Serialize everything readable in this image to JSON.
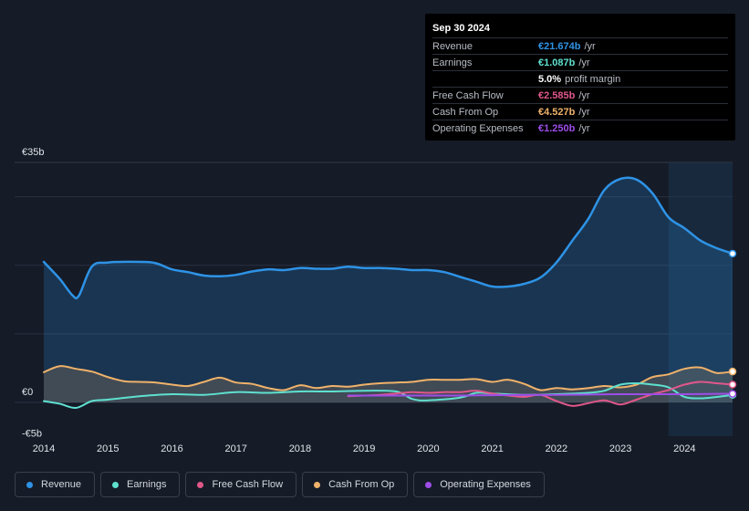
{
  "tooltip": {
    "date": "Sep 30 2024",
    "rows": [
      {
        "label": "Revenue",
        "value": "€21.674b",
        "unit": "/yr",
        "color": "#2e93e6"
      },
      {
        "label": "Earnings",
        "value": "€1.087b",
        "unit": "/yr",
        "color": "#5fe0cf"
      },
      {
        "label": "",
        "value": "5.0%",
        "unit": "profit margin",
        "color": "#ffffff"
      },
      {
        "label": "Free Cash Flow",
        "value": "€2.585b",
        "unit": "/yr",
        "color": "#e0578a"
      },
      {
        "label": "Cash From Op",
        "value": "€4.527b",
        "unit": "/yr",
        "color": "#f0b26a"
      },
      {
        "label": "Operating Expenses",
        "value": "€1.250b",
        "unit": "/yr",
        "color": "#9e4de8"
      }
    ]
  },
  "legend": [
    {
      "label": "Revenue",
      "color": "#2e93e6"
    },
    {
      "label": "Earnings",
      "color": "#5fe0cf"
    },
    {
      "label": "Free Cash Flow",
      "color": "#e0578a"
    },
    {
      "label": "Cash From Op",
      "color": "#f0b26a"
    },
    {
      "label": "Operating Expenses",
      "color": "#9e4de8"
    }
  ],
  "chart_data": {
    "type": "line",
    "y_tick_labels": [
      "€35b",
      "€0",
      "-€5b"
    ],
    "ylim": [
      -5,
      35
    ],
    "xlim": [
      2014,
      2024.75
    ],
    "x_tick_labels": [
      "2014",
      "2015",
      "2016",
      "2017",
      "2018",
      "2019",
      "2020",
      "2021",
      "2022",
      "2023",
      "2024"
    ],
    "x_ticks": [
      2014,
      2015,
      2016,
      2017,
      2018,
      2019,
      2020,
      2021,
      2022,
      2023,
      2024
    ],
    "highlight_start": 2023.75,
    "grid": true,
    "series": [
      {
        "name": "Revenue",
        "color": "#2e93e6",
        "fill": true,
        "x": [
          2014,
          2014.25,
          2014.45,
          2014.55,
          2014.75,
          2015,
          2015.5,
          2015.75,
          2016,
          2016.25,
          2016.5,
          2016.75,
          2017,
          2017.25,
          2017.5,
          2017.75,
          2018,
          2018.25,
          2018.5,
          2018.75,
          2019,
          2019.25,
          2019.5,
          2019.75,
          2020,
          2020.25,
          2020.5,
          2020.75,
          2021,
          2021.25,
          2021.5,
          2021.75,
          2022,
          2022.25,
          2022.5,
          2022.75,
          2023,
          2023.25,
          2023.5,
          2023.75,
          2024,
          2024.25,
          2024.5,
          2024.75
        ],
        "y": [
          20.5,
          18,
          15.6,
          15.6,
          19.8,
          20.4,
          20.5,
          20.3,
          19.4,
          19,
          18.5,
          18.4,
          18.6,
          19.1,
          19.4,
          19.3,
          19.6,
          19.5,
          19.5,
          19.8,
          19.6,
          19.6,
          19.5,
          19.3,
          19.3,
          19,
          18.3,
          17.6,
          16.9,
          16.9,
          17.3,
          18.2,
          20.4,
          23.6,
          26.8,
          31,
          32.6,
          32.5,
          30.5,
          27,
          25.4,
          23.6,
          22.5,
          21.7
        ]
      },
      {
        "name": "Earnings",
        "color": "#5fe0cf",
        "fill": false,
        "x": [
          2014,
          2014.25,
          2014.5,
          2014.75,
          2015,
          2015.5,
          2016,
          2016.5,
          2017,
          2017.5,
          2018,
          2018.5,
          2019,
          2019.5,
          2019.75,
          2020,
          2020.5,
          2020.75,
          2021,
          2021.5,
          2022,
          2022.5,
          2022.75,
          2023,
          2023.25,
          2023.5,
          2023.75,
          2024,
          2024.25,
          2024.5,
          2024.75
        ],
        "y": [
          0.2,
          -0.2,
          -0.8,
          0.2,
          0.4,
          0.9,
          1.2,
          1.1,
          1.5,
          1.4,
          1.6,
          1.6,
          1.7,
          1.6,
          0.5,
          0.3,
          0.7,
          1.4,
          1.3,
          1.1,
          1.2,
          1.4,
          1.7,
          2.6,
          2.8,
          2.6,
          2.2,
          0.8,
          0.6,
          0.8,
          1.1
        ]
      },
      {
        "name": "Free Cash Flow",
        "color": "#e0578a",
        "fill": false,
        "x": [
          2018.75,
          2019,
          2019.25,
          2019.5,
          2019.75,
          2020,
          2020.25,
          2020.5,
          2020.75,
          2021,
          2021.25,
          2021.5,
          2021.75,
          2022,
          2022.25,
          2022.5,
          2022.75,
          2023,
          2023.25,
          2023.5,
          2023.75,
          2024,
          2024.25,
          2024.5,
          2024.75
        ],
        "y": [
          0.9,
          1.0,
          1.1,
          1.3,
          1.5,
          1.4,
          1.5,
          1.5,
          1.7,
          1.3,
          1.0,
          0.8,
          1.1,
          0.2,
          -0.5,
          -0.1,
          0.3,
          -0.3,
          0.4,
          1.2,
          1.8,
          2.6,
          3.0,
          2.8,
          2.6
        ]
      },
      {
        "name": "Cash From Op",
        "color": "#f0b26a",
        "fill": true,
        "x": [
          2014,
          2014.25,
          2014.5,
          2014.75,
          2015,
          2015.25,
          2015.5,
          2015.75,
          2016,
          2016.25,
          2016.5,
          2016.75,
          2017,
          2017.25,
          2017.5,
          2017.75,
          2018,
          2018.25,
          2018.5,
          2018.75,
          2019,
          2019.25,
          2019.5,
          2019.75,
          2020,
          2020.25,
          2020.5,
          2020.75,
          2021,
          2021.25,
          2021.5,
          2021.75,
          2022,
          2022.25,
          2022.5,
          2022.75,
          2023,
          2023.25,
          2023.5,
          2023.75,
          2024,
          2024.25,
          2024.5,
          2024.75
        ],
        "y": [
          4.4,
          5.3,
          4.9,
          4.5,
          3.7,
          3.1,
          3.0,
          2.9,
          2.6,
          2.4,
          3.0,
          3.6,
          2.9,
          2.7,
          2.1,
          1.8,
          2.5,
          2.1,
          2.4,
          2.3,
          2.6,
          2.8,
          2.9,
          3.0,
          3.3,
          3.3,
          3.3,
          3.4,
          3.0,
          3.3,
          2.7,
          1.8,
          2.1,
          1.9,
          2.1,
          2.4,
          2.2,
          2.6,
          3.7,
          4.1,
          4.9,
          5.1,
          4.3,
          4.5
        ]
      },
      {
        "name": "Operating Expenses",
        "color": "#9e4de8",
        "fill": false,
        "x": [
          2018.75,
          2019,
          2019.5,
          2020,
          2020.5,
          2021,
          2021.5,
          2022,
          2022.5,
          2023,
          2023.5,
          2024,
          2024.5,
          2024.75
        ],
        "y": [
          1.0,
          1.0,
          1.0,
          1.0,
          1.0,
          1.05,
          1.1,
          1.1,
          1.15,
          1.2,
          1.2,
          1.2,
          1.25,
          1.25
        ]
      }
    ]
  }
}
